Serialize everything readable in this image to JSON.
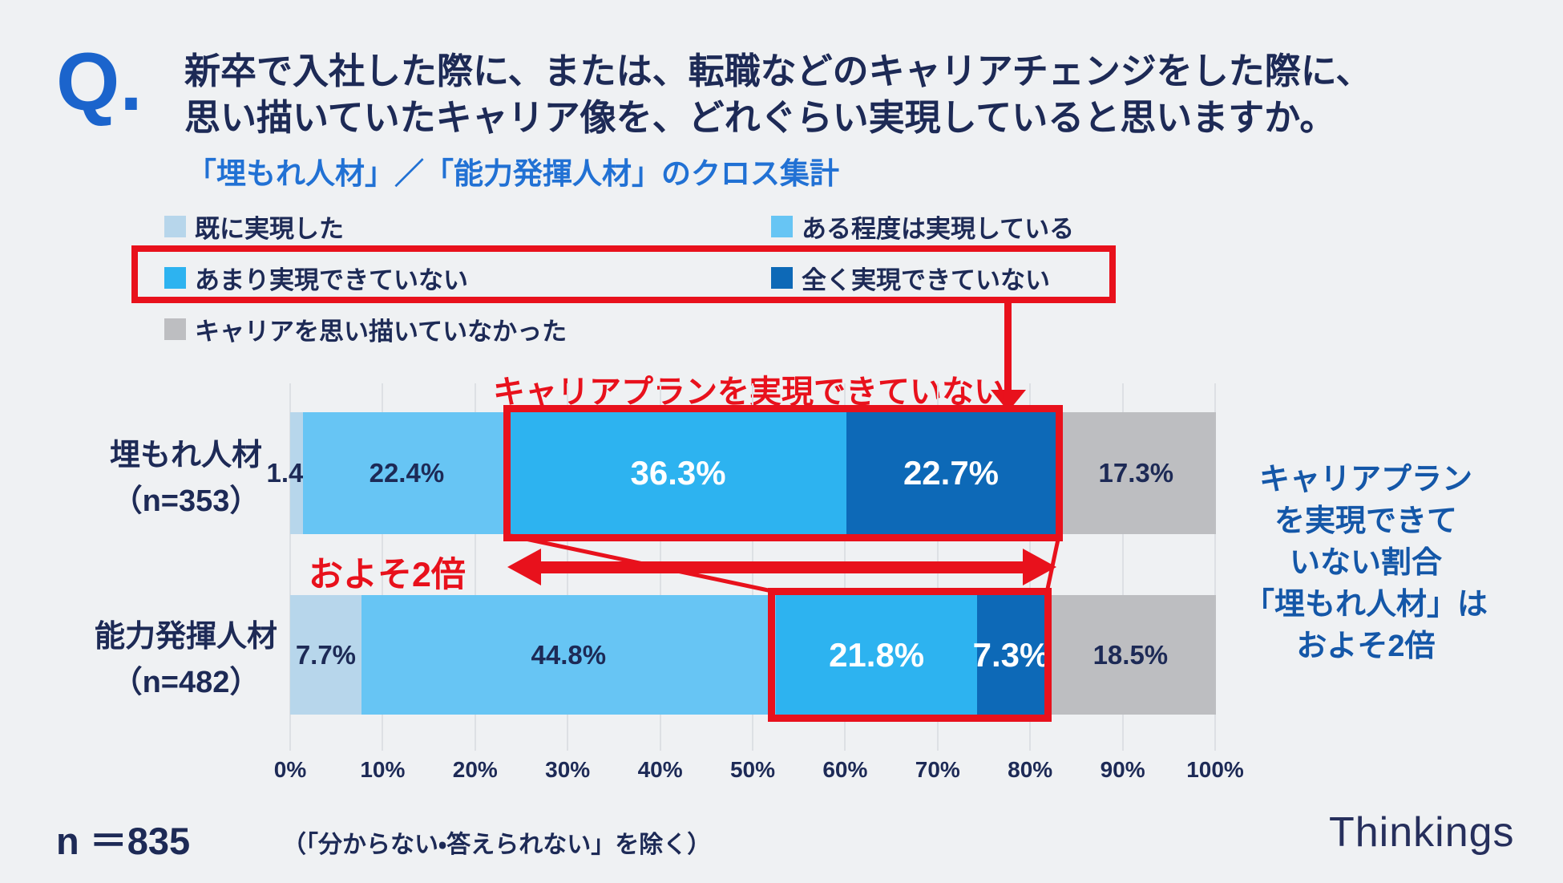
{
  "question": {
    "mark": "Q.",
    "title_line1": "新卒で入社した際に、または、転職などのキャリアチェンジをした際に、",
    "title_line2": "思い描いていたキャリア像を、どれぐらい実現していると思いますか。",
    "subtitle": "「埋もれ人材」／「能力発揮人材」のクロス集計"
  },
  "legend": {
    "items": [
      {
        "label": "既に実現した",
        "color": "#b7d6eb"
      },
      {
        "label": "ある程度は実現している",
        "color": "#67c5f4"
      },
      {
        "label": "あまり実現できていない",
        "color": "#2db3f0"
      },
      {
        "label": "全く実現できていない",
        "color": "#0d69b7"
      },
      {
        "label": "キャリアを思い描いていなかった",
        "color": "#bdbec1"
      }
    ]
  },
  "annotations": {
    "highlight_label": "キャリアプランを実現できていない",
    "ratio_label": "およそ2倍",
    "side_note_lines": [
      "キャリアプラン",
      "を実現できて",
      "いない割合",
      "「埋もれ人材」は",
      "およそ2倍"
    ],
    "accent_red": "#e8111c",
    "side_note_blue": "#1457a8"
  },
  "chart_data": {
    "type": "bar",
    "orientation": "horizontal-stacked",
    "categories": [
      "埋もれ人材",
      "能力発揮人材"
    ],
    "category_sublabels": [
      "（n=353）",
      "（n=482）"
    ],
    "series": [
      {
        "name": "既に実現した",
        "color": "#b7d6eb",
        "text_color": "#1d2a56",
        "values": [
          1.4,
          7.7
        ]
      },
      {
        "name": "ある程度は実現している",
        "color": "#67c5f4",
        "text_color": "#1d2a56",
        "values": [
          22.4,
          44.8
        ]
      },
      {
        "name": "あまり実現できていない",
        "color": "#2db3f0",
        "text_color": "#ffffff",
        "values": [
          36.3,
          21.8
        ]
      },
      {
        "name": "全く実現できていない",
        "color": "#0d69b7",
        "text_color": "#ffffff",
        "values": [
          22.7,
          7.3
        ]
      },
      {
        "name": "キャリアを思い描いていなかった",
        "color": "#bdbec1",
        "text_color": "#1d2a56",
        "values": [
          17.3,
          18.5
        ]
      }
    ],
    "x_ticks": [
      "0%",
      "10%",
      "20%",
      "30%",
      "40%",
      "50%",
      "60%",
      "70%",
      "80%",
      "90%",
      "100%"
    ],
    "xlim": [
      0,
      100
    ],
    "grid": true,
    "legend_position": "top"
  },
  "footer": {
    "n_label": "n ＝835",
    "note": "（「分からない・答えられない」を除く）",
    "logo": "Thinkings"
  }
}
